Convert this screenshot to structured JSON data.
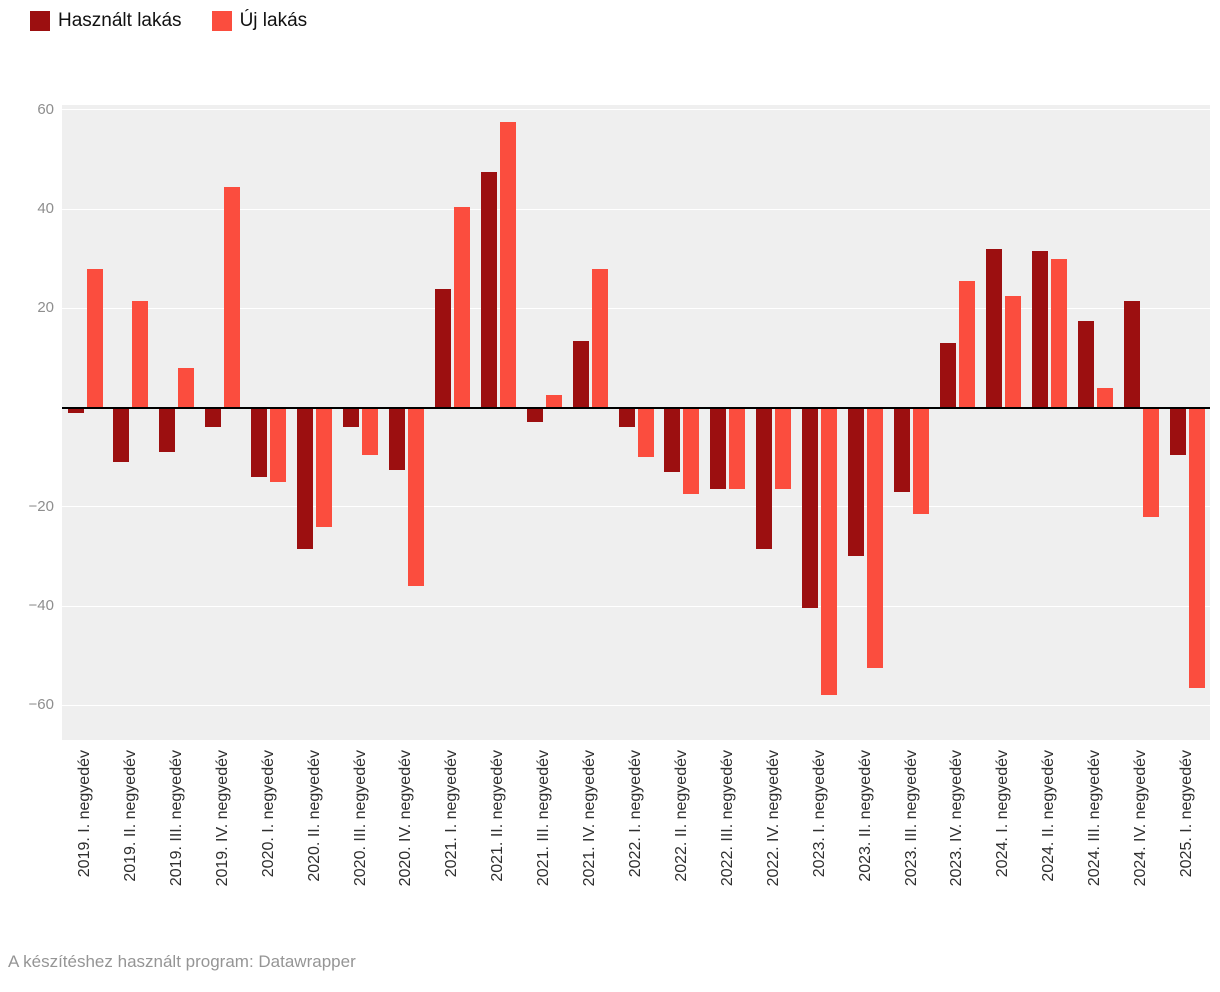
{
  "legend": {
    "items": [
      {
        "label": "Használt lakás",
        "color": "#9c0f10"
      },
      {
        "label": "Új lakás",
        "color": "#fb4d3e"
      }
    ]
  },
  "footer": {
    "text": "A készítéshez használt program: Datawrapper"
  },
  "chart_data": {
    "type": "bar",
    "title": "",
    "categories": [
      "2019. I. negyedév",
      "2019. II. negyedév",
      "2019. III. negyedév",
      "2019. IV. negyedév",
      "2020. I. negyedév",
      "2020. II. negyedév",
      "2020. III. negyedév",
      "2020. IV. negyedév",
      "2021. I. negyedév",
      "2021. II. negyedév",
      "2021. III. negyedév",
      "2021. IV. negyedév",
      "2022. I. negyedév",
      "2022. II. negyedév",
      "2022. III. negyedév",
      "2022. IV. negyedév",
      "2023. I. negyedév",
      "2023. II. negyedév",
      "2023. III. negyedév",
      "2023. IV. negyedév",
      "2024. I. negyedév",
      "2024. II. negyedév",
      "2024. III. negyedév",
      "2024. IV. negyedév",
      "2025. I. negyedév"
    ],
    "series": [
      {
        "name": "Használt lakás",
        "color": "#9c0f10",
        "values": [
          -1,
          -11,
          -9,
          -4,
          -14,
          -28.5,
          -4,
          -12.5,
          24,
          47.5,
          -3,
          13.5,
          -4,
          -13,
          -16.5,
          -28.5,
          -40.5,
          -30,
          -17,
          13,
          32,
          31.5,
          17.5,
          21.5,
          -9.5
        ]
      },
      {
        "name": "Új lakás",
        "color": "#fb4d3e",
        "values": [
          28,
          21.5,
          8,
          44.5,
          -15,
          -24,
          -9.5,
          -36,
          40.5,
          57.5,
          2.5,
          28,
          -10,
          -17.5,
          -16.5,
          -16.5,
          -58,
          -52.5,
          -21.5,
          25.5,
          22.5,
          30,
          4,
          -22,
          -56.5
        ]
      }
    ],
    "ylim": [
      -60,
      60
    ],
    "y_ticks": [
      {
        "label": "60",
        "value": 60
      },
      {
        "label": "40",
        "value": 40
      },
      {
        "label": "20",
        "value": 20
      },
      {
        "label": "−20",
        "value": -20
      },
      {
        "label": "−40",
        "value": -40
      },
      {
        "label": "−60",
        "value": -60
      }
    ],
    "grid": true,
    "plot_background": "#efefef",
    "legend_position": "top-left",
    "x_label_rotation": -90
  }
}
